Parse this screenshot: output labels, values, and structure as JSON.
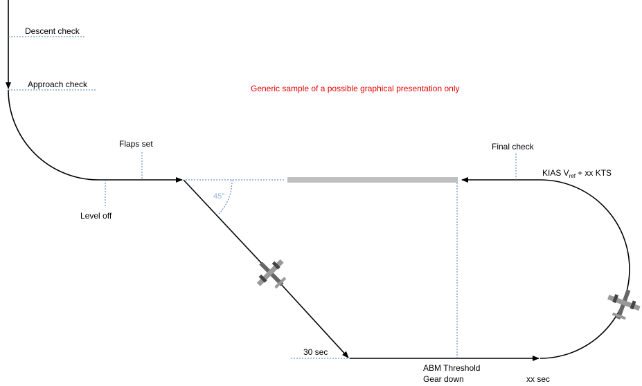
{
  "notice": "Generic sample of a possible graphical presentation only",
  "labels": {
    "descent_check": "Descent check",
    "approach_check": "Approach check",
    "flaps_set": "Flaps set",
    "level_off": "Level off",
    "angle": "45°",
    "thirty_sec": "30 sec",
    "abm_threshold": "ABM Threshold",
    "gear_down": "Gear down",
    "xx_sec": "xx sec",
    "final_check": "Final check",
    "speed": {
      "prefix": "KIAS V",
      "subscript": "ref",
      "suffix": "+ xx KTS"
    }
  }
}
